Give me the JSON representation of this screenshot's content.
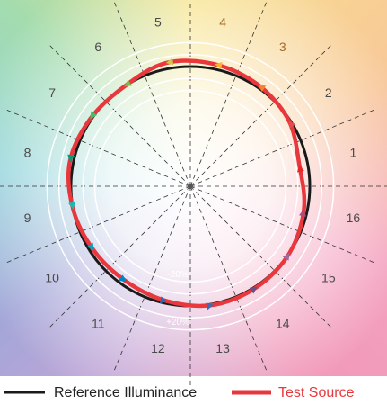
{
  "chart_data": {
    "type": "polar-vector",
    "categories": [
      "1",
      "2",
      "3",
      "4",
      "5",
      "6",
      "7",
      "8",
      "9",
      "10",
      "11",
      "12",
      "13",
      "14",
      "15",
      "16"
    ],
    "series": [
      {
        "name": "Reference Illuminance",
        "color": "#1a1a1a",
        "values": [
          0,
          0,
          0,
          0,
          0,
          0,
          0,
          0,
          0,
          0,
          0,
          0,
          0,
          0,
          0,
          0
        ]
      },
      {
        "name": "Test Source",
        "color": "#e8383d",
        "values": [
          -7,
          -1,
          2,
          4,
          5,
          0,
          1,
          3,
          0,
          -3,
          -4,
          -2,
          1,
          1,
          0,
          -3
        ]
      }
    ],
    "bin_colors": [
      "#e62828",
      "#e74b4b",
      "#fb812e",
      "#ffb529",
      "#cbca46",
      "#7eb94c",
      "#41c06d",
      "#009c7c",
      "#16bcb0",
      "#00a4bf",
      "#0085c3",
      "#3b62aa",
      "#4568ae",
      "#6a4e85",
      "#9d69a1",
      "#a74f81"
    ],
    "rticks": [
      {
        "value": -20,
        "label": "-20%"
      },
      {
        "value": -10,
        "label": null
      },
      {
        "value": 10,
        "label": null
      },
      {
        "value": 20,
        "label": "+20%"
      }
    ]
  }
}
